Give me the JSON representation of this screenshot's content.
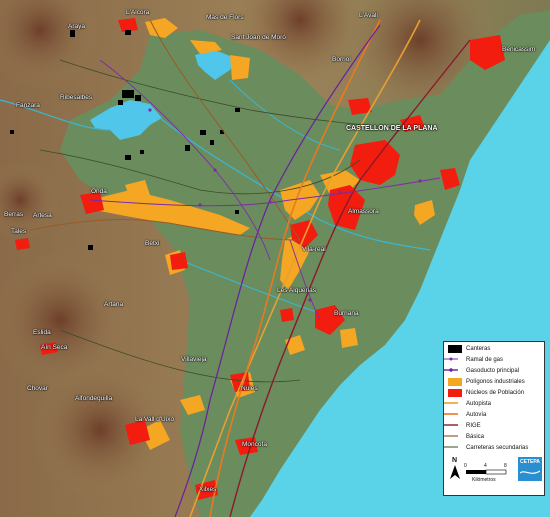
{
  "map": {
    "colors": {
      "sea": "#5ad2e8",
      "plain": "#6b8c5c",
      "mountain_light": "#a08a62",
      "mountain_dark": "#7a5238",
      "reservoir": "#4fc6ea",
      "urban": "#f21c0f",
      "industrial": "#f5a623",
      "quarry": "#000000",
      "gas_branch": "#7a2ca8",
      "gas_main": "#6a1fa0",
      "motorway": "#e8a030",
      "expressway": "#e87a20",
      "rail": "#8a1a2a",
      "basic_road": "#9a5a2a",
      "secondary_road": "#3c4a2a",
      "river": "#38b8d8"
    },
    "places": [
      {
        "id": "alcora",
        "name": "L'Alcora"
      },
      {
        "id": "araya",
        "name": "Araya"
      },
      {
        "id": "masdeflors",
        "name": "Mas de Flors"
      },
      {
        "id": "santjoan",
        "name": "Sant Joan de Moró"
      },
      {
        "id": "lavall",
        "name": "L'Avall"
      },
      {
        "id": "benicassim",
        "name": "Benicassim"
      },
      {
        "id": "borriol",
        "name": "Borriol"
      },
      {
        "id": "fanzara",
        "name": "Fanzara"
      },
      {
        "id": "ribesalbes",
        "name": "Ribesalbes"
      },
      {
        "id": "castellon",
        "name": "CASTELLON DE LA PLANA"
      },
      {
        "id": "onda",
        "name": "Onda"
      },
      {
        "id": "artesa",
        "name": "Artesa"
      },
      {
        "id": "tales",
        "name": "Tales"
      },
      {
        "id": "berras",
        "name": "Berras"
      },
      {
        "id": "almassora",
        "name": "Almassora"
      },
      {
        "id": "betxi",
        "name": "Betxi"
      },
      {
        "id": "vilareal",
        "name": "Vila-real"
      },
      {
        "id": "alquerias",
        "name": "Les Alquerias"
      },
      {
        "id": "artana",
        "name": "Artana"
      },
      {
        "id": "burriana",
        "name": "Burriana"
      },
      {
        "id": "eslida",
        "name": "Eslida"
      },
      {
        "id": "aincaseca",
        "name": "Aín Seca"
      },
      {
        "id": "villavieja",
        "name": "Villavieja"
      },
      {
        "id": "chovar",
        "name": "Chovar"
      },
      {
        "id": "nules",
        "name": "Nules"
      },
      {
        "id": "alfondeguilla",
        "name": "Alfondeguilla"
      },
      {
        "id": "lavalldeuxo",
        "name": "La Vall d'Uixó"
      },
      {
        "id": "moncofa",
        "name": "Moncofa"
      },
      {
        "id": "xilxes",
        "name": "Xilxes"
      }
    ],
    "legend": {
      "items": [
        {
          "label": "Canteras",
          "symbol": "fill",
          "color": "#000000"
        },
        {
          "label": "Ramal de gas",
          "symbol": "line-dot",
          "color": "#7a2ca8"
        },
        {
          "label": "Gasoducto principal",
          "symbol": "line-dot",
          "color": "#6a1fa0"
        },
        {
          "label": "Polígonos industriales",
          "symbol": "fill",
          "color": "#f5a623"
        },
        {
          "label": "Núcleos de Población",
          "symbol": "fill",
          "color": "#f21c0f"
        },
        {
          "label": "Autopista",
          "symbol": "line",
          "color": "#e8a030"
        },
        {
          "label": "Autovía",
          "symbol": "line",
          "color": "#e87a20"
        },
        {
          "label": "RIGE",
          "symbol": "line",
          "color": "#8a1a2a"
        },
        {
          "label": "Básica",
          "symbol": "line",
          "color": "#9a5a2a"
        },
        {
          "label": "Carreteras secundarias",
          "symbol": "line",
          "color": "#3c4a2a"
        }
      ],
      "north": "N",
      "scale_ticks": [
        "0",
        "4",
        "8"
      ],
      "scale_unit": "Kilómetros",
      "logo_text": "CETEPA"
    }
  }
}
